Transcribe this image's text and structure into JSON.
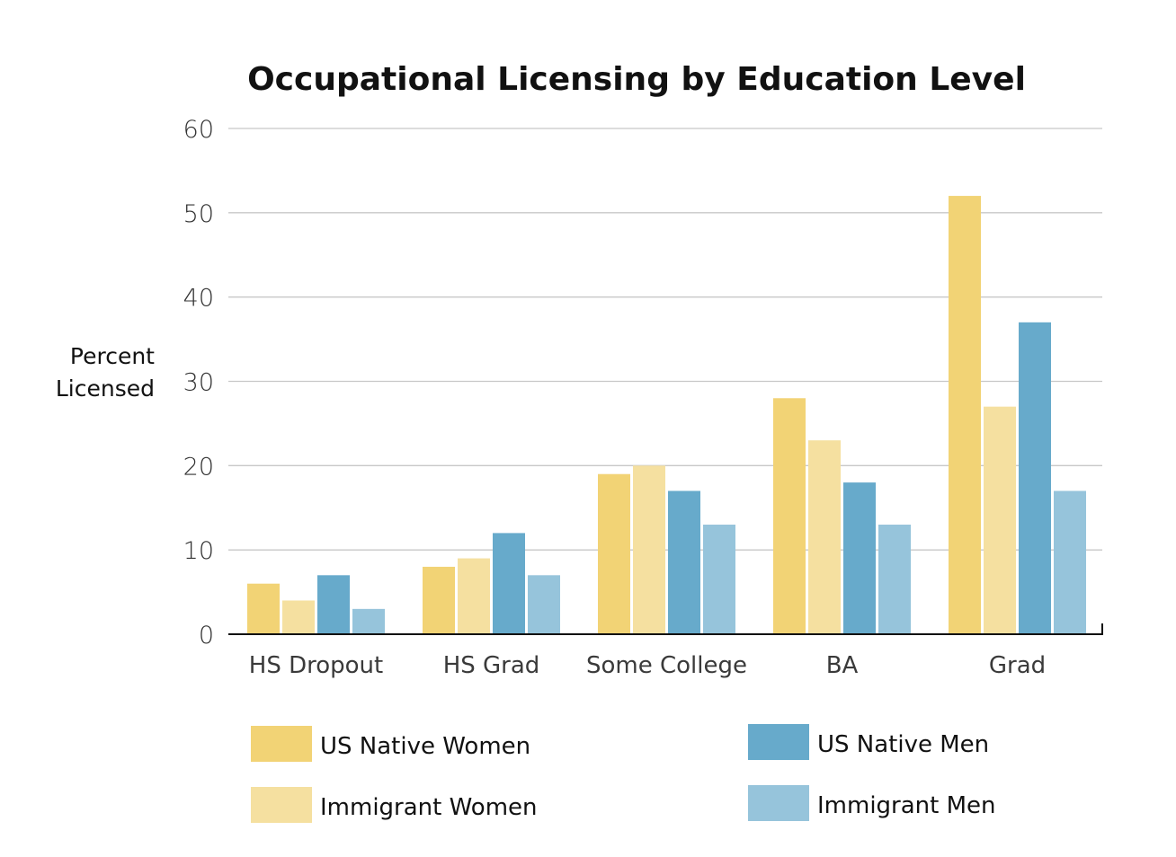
{
  "chart_data": {
    "type": "bar",
    "title": "Occupational Licensing by Education Level",
    "ylabel": "Percent Licensed",
    "ylabel_lines": [
      "Percent",
      "Licensed"
    ],
    "xlabel": "",
    "ylim": [
      0,
      60
    ],
    "yticks": [
      "0",
      "10",
      "20",
      "30",
      "40",
      "50",
      "60"
    ],
    "grid": true,
    "legend_position": "bottom",
    "categories": [
      "HS Dropout",
      "HS Grad",
      "Some College",
      "BA",
      "Grad"
    ],
    "series": [
      {
        "name": "US Native Women",
        "color": "#F2D375",
        "values": [
          6,
          8,
          19,
          28,
          52
        ]
      },
      {
        "name": "Immigrant Women",
        "color": "#F5E0A0",
        "values": [
          4,
          9,
          20,
          23,
          27
        ]
      },
      {
        "name": "US Native Men",
        "color": "#67AACB",
        "values": [
          7,
          12,
          17,
          18,
          37
        ]
      },
      {
        "name": "Immigrant Men",
        "color": "#96C4DB",
        "values": [
          3,
          7,
          13,
          13,
          17
        ]
      }
    ]
  }
}
